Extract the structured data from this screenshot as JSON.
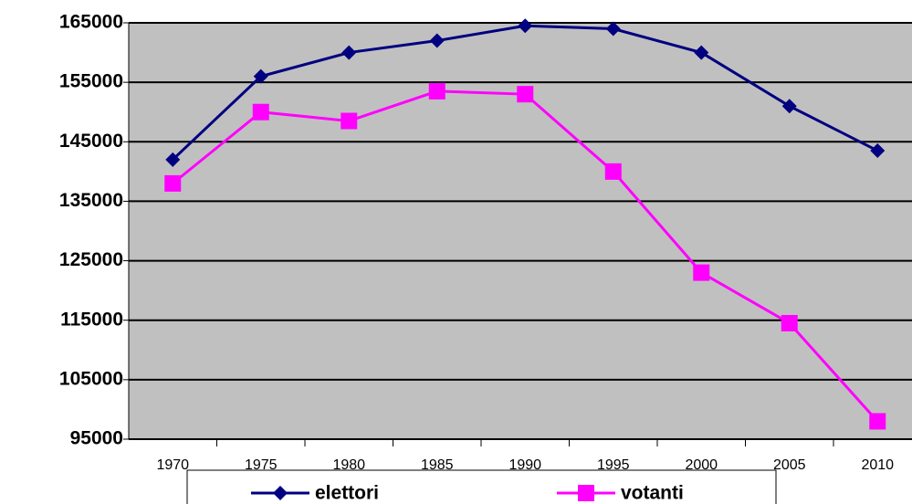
{
  "chart_data": {
    "type": "line",
    "categories": [
      "1970",
      "1975",
      "1980",
      "1985",
      "1990",
      "1995",
      "2000",
      "2005",
      "2010"
    ],
    "series": [
      {
        "name": "elettori",
        "color": "#000080",
        "marker": "diamond",
        "values": [
          142000,
          156000,
          160000,
          162000,
          164500,
          164000,
          160000,
          151000,
          143500
        ]
      },
      {
        "name": "votanti",
        "color": "#ff00ff",
        "marker": "square",
        "values": [
          138000,
          150000,
          148500,
          153500,
          153000,
          140000,
          123000,
          114500,
          98000
        ]
      }
    ],
    "ylim": [
      95000,
      165000
    ],
    "yticks": [
      95000,
      105000,
      115000,
      125000,
      135000,
      145000,
      155000,
      165000
    ],
    "grid": true,
    "legend": "bottom",
    "plot_background": "#c0c0c0"
  }
}
